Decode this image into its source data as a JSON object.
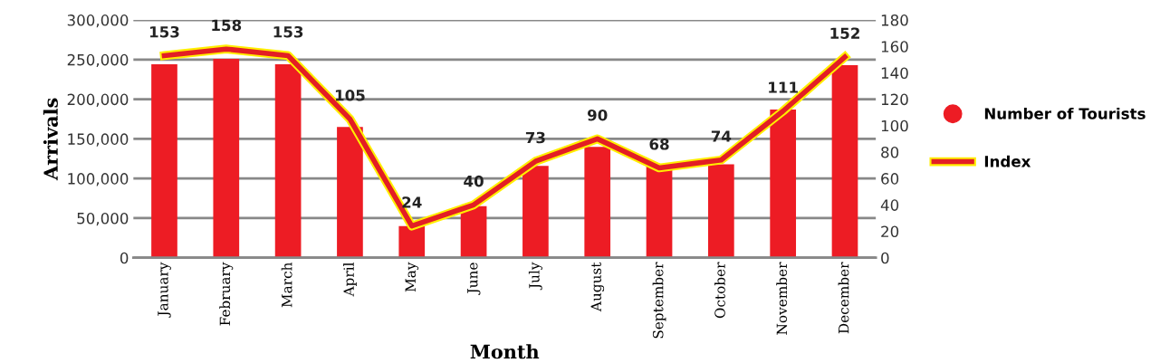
{
  "chart_data": {
    "type": "bar",
    "xlabel": "Month",
    "ylabel": "Arrivals",
    "categories": [
      "January",
      "February",
      "March",
      "April",
      "May",
      "June",
      "July",
      "August",
      "September",
      "October",
      "November",
      "December"
    ],
    "series": [
      {
        "name": "Number of Tourists",
        "color": "#ed1c24",
        "values": [
          244000,
          251000,
          244000,
          165000,
          40000,
          65000,
          116000,
          140000,
          115000,
          118000,
          187000,
          243000
        ]
      },
      {
        "name": "Index",
        "type": "line",
        "axis": "y2",
        "color": "#e31e24",
        "values": [
          153,
          158,
          153,
          105,
          24,
          40,
          73,
          90,
          68,
          74,
          111,
          152
        ],
        "data_labels": true
      }
    ],
    "ylim": [
      0,
      300000
    ],
    "yticks": [
      {
        "value": 0,
        "label": "0"
      },
      {
        "value": 50000,
        "label": "50,000"
      },
      {
        "value": 100000,
        "label": "100,000"
      },
      {
        "value": 150000,
        "label": "150,000"
      },
      {
        "value": 200000,
        "label": "200,000"
      },
      {
        "value": 250000,
        "label": "250,000"
      },
      {
        "value": 300000,
        "label": "300,000"
      }
    ],
    "y2lim": [
      0,
      180
    ],
    "y2ticks": [
      0,
      20,
      40,
      60,
      80,
      100,
      120,
      140,
      160,
      180
    ],
    "grid": "y",
    "legend": "right"
  }
}
